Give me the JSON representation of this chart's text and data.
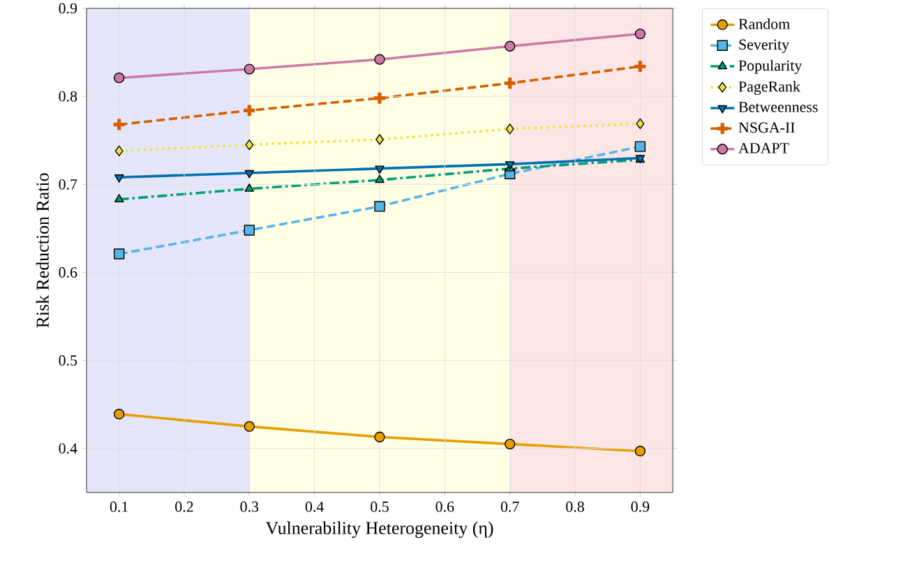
{
  "chart_data": {
    "type": "line",
    "xlabel": "Vulnerability Heterogeneity (η)",
    "ylabel": "Risk Reduction Ratio",
    "x": [
      0.1,
      0.3,
      0.5,
      0.7,
      0.9
    ],
    "xlim": [
      0.05,
      0.95
    ],
    "ylim": [
      0.35,
      0.9
    ],
    "xticks": [
      0.1,
      0.2,
      0.3,
      0.4,
      0.5,
      0.6,
      0.7,
      0.8,
      0.9
    ],
    "yticks": [
      0.4,
      0.5,
      0.6,
      0.7,
      0.8,
      0.9
    ],
    "grid": true,
    "legend": "top right",
    "bands": [
      {
        "axis": "x",
        "from": 0.05,
        "to": 0.3,
        "color": "#e6e6fa"
      },
      {
        "axis": "x",
        "from": 0.3,
        "to": 0.7,
        "color": "#ffffe5"
      },
      {
        "axis": "x",
        "from": 0.7,
        "to": 0.95,
        "color": "#fde6e6"
      }
    ],
    "series": [
      {
        "name": "Random",
        "color": "#e69f00",
        "marker": "circle",
        "line_style": "solid",
        "values": [
          0.439,
          0.425,
          0.413,
          0.405,
          0.397
        ]
      },
      {
        "name": "Severity",
        "color": "#56b4e9",
        "marker": "square",
        "line_style": "dashed",
        "values": [
          0.621,
          0.648,
          0.675,
          0.712,
          0.743
        ]
      },
      {
        "name": "Popularity",
        "color": "#009e73",
        "marker": "triangle",
        "line_style": "dashdot",
        "values": [
          0.683,
          0.695,
          0.705,
          0.718,
          0.728
        ]
      },
      {
        "name": "PageRank",
        "color": "#f0e442",
        "marker": "diamond",
        "line_style": "dotted",
        "values": [
          0.738,
          0.745,
          0.751,
          0.763,
          0.769
        ]
      },
      {
        "name": "Betweenness",
        "color": "#0072b2",
        "marker": "triangle_down",
        "line_style": "solid",
        "values": [
          0.708,
          0.713,
          0.718,
          0.723,
          0.73
        ]
      },
      {
        "name": "NSGA-II",
        "color": "#d55e00",
        "marker": "plus",
        "line_style": "dashed",
        "values": [
          0.768,
          0.784,
          0.798,
          0.815,
          0.834
        ]
      },
      {
        "name": "ADAPT",
        "color": "#cc79a7",
        "marker": "circle",
        "line_style": "solid",
        "values": [
          0.821,
          0.831,
          0.842,
          0.857,
          0.871
        ]
      }
    ]
  }
}
